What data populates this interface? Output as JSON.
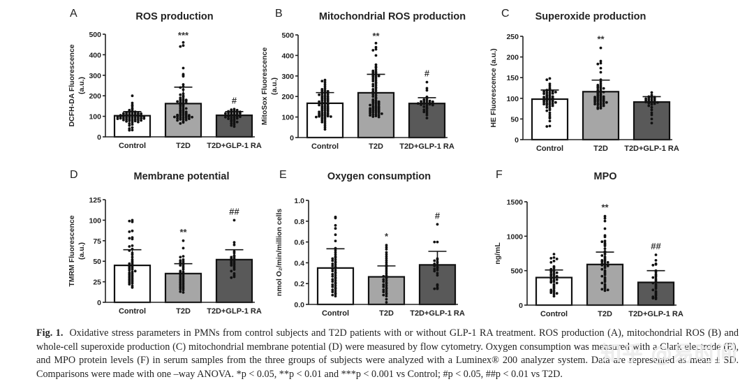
{
  "figure_caption": {
    "label": "Fig. 1.",
    "text": "Oxidative stress parameters in PMNs from control subjects and T2D patients with or without GLP-1 RA treatment. ROS production (A), mitochondrial ROS (B) and whole-cell superoxide production (C) mitochondrial membrane potential (D) were measured by flow cytometry. Oxygen consumption was measured with a Clark electrode (E), and MPO protein levels (F) in serum samples from the three groups of subjects were analyzed with a Luminex® 200 analyzer system. Data are represented as mean ± SD. Comparisons were made with one –way ANOVA. *p < 0.05, **p < 0.01 and ***p < 0.001 vs Control; #p < 0.05, ##p < 0.01 vs T2D."
  },
  "watermark": "知乎 @易时间",
  "colors": {
    "control": "#ffffff",
    "t2d": "#a6a6a6",
    "glp1": "#595959",
    "dots": "#111111",
    "axis": "#222222"
  },
  "chart_data": [
    {
      "panel": "A",
      "type": "bar",
      "title": "ROS production",
      "ylabel": "DCFH-DA Fluorescence (a.u.)",
      "ylabel_lines": [
        "DCFH-DA Fluorescence",
        "(a.u.)"
      ],
      "ylim": [
        0,
        500
      ],
      "yticks": [
        0,
        100,
        200,
        300,
        400,
        500
      ],
      "categories": [
        "Control",
        "T2D",
        "T2D+GLP-1 RA"
      ],
      "means": [
        103,
        162,
        105
      ],
      "sd": [
        20,
        80,
        18
      ],
      "significance": [
        "",
        "***",
        "#"
      ],
      "points": [
        [
          200,
          165,
          155,
          150,
          140,
          135,
          130,
          128,
          125,
          122,
          120,
          120,
          118,
          117,
          115,
          114,
          113,
          112,
          110,
          110,
          108,
          107,
          106,
          105,
          105,
          104,
          103,
          102,
          101,
          100,
          100,
          99,
          98,
          97,
          96,
          95,
          95,
          94,
          93,
          92,
          91,
          90,
          90,
          89,
          88,
          87,
          86,
          85,
          84,
          83,
          82,
          80,
          79,
          78,
          77,
          75,
          72,
          70,
          65,
          60,
          55,
          45,
          40,
          33,
          32
        ],
        [
          460,
          445,
          440,
          335,
          305,
          300,
          295,
          255,
          245,
          240,
          230,
          210,
          205,
          200,
          195,
          190,
          185,
          182,
          180,
          178,
          176,
          175,
          172,
          170,
          168,
          165,
          160,
          155,
          152,
          150,
          145,
          140,
          138,
          135,
          130,
          128,
          125,
          122,
          120,
          118,
          115,
          112,
          110,
          108,
          106,
          105,
          104,
          102,
          100,
          100,
          98,
          97,
          96,
          95,
          93,
          92,
          90,
          88,
          86,
          85,
          82,
          80,
          75,
          70,
          65
        ],
        [
          135,
          132,
          130,
          128,
          126,
          125,
          124,
          122,
          120,
          118,
          117,
          116,
          115,
          114,
          112,
          110,
          108,
          106,
          105,
          104,
          102,
          100,
          99,
          98,
          96,
          95,
          92,
          90,
          88,
          85,
          82,
          78,
          75,
          72,
          68,
          65,
          60,
          55,
          50
        ]
      ]
    },
    {
      "panel": "B",
      "type": "bar",
      "title": "Mitochondrial  ROS production",
      "ylabel": "MitoSox Fluorescence (a.u.)",
      "ylabel_lines": [
        "MitoSox Fluorescence",
        "(a.u.)"
      ],
      "ylim": [
        0,
        500
      ],
      "yticks": [
        0,
        100,
        200,
        300,
        400,
        500
      ],
      "categories": [
        "Control",
        "T2D",
        "T2D+GLP-1 RA"
      ],
      "means": [
        167,
        218,
        166
      ],
      "sd": [
        52,
        90,
        28
      ],
      "significance": [
        "",
        "**",
        "#"
      ],
      "points": [
        [
          280,
          275,
          270,
          260,
          250,
          240,
          235,
          230,
          228,
          225,
          222,
          220,
          218,
          215,
          212,
          210,
          208,
          205,
          202,
          200,
          198,
          195,
          192,
          190,
          188,
          185,
          182,
          180,
          178,
          175,
          172,
          170,
          168,
          165,
          162,
          160,
          158,
          155,
          152,
          150,
          148,
          145,
          142,
          140,
          138,
          135,
          132,
          130,
          128,
          125,
          122,
          120,
          118,
          116,
          114,
          112,
          110,
          108,
          106,
          105,
          104,
          103,
          102,
          100,
          98,
          95,
          90,
          85,
          80,
          75,
          70,
          60,
          50,
          40
        ],
        [
          460,
          440,
          430,
          425,
          400,
          355,
          345,
          340,
          330,
          325,
          320,
          318,
          315,
          310,
          305,
          302,
          300,
          298,
          295,
          290,
          285,
          280,
          275,
          270,
          265,
          260,
          255,
          250,
          245,
          240,
          235,
          230,
          225,
          220,
          215,
          210,
          205,
          200,
          195,
          190,
          185,
          180,
          178,
          175,
          172,
          170,
          168,
          165,
          162,
          160,
          158,
          155,
          152,
          150,
          148,
          146,
          144,
          142,
          140,
          138,
          136,
          134,
          132,
          130,
          128,
          126,
          124,
          122,
          120,
          118,
          116,
          114,
          112,
          110,
          108,
          105,
          102,
          100
        ],
        [
          270,
          240,
          230,
          198,
          190,
          185,
          182,
          180,
          178,
          176,
          175,
          174,
          172,
          170,
          168,
          167,
          166,
          165,
          164,
          162,
          160,
          158,
          155,
          150,
          145,
          140,
          135,
          130,
          125,
          120,
          110,
          95
        ]
      ]
    },
    {
      "panel": "C",
      "type": "bar",
      "title": "Superoxide production",
      "ylabel": "HE Fluorescence (a.u.)",
      "ylabel_lines": [
        "HE Fluorescence (a.u.)"
      ],
      "ylim": [
        0,
        250
      ],
      "yticks": [
        0,
        50,
        100,
        150,
        200,
        250
      ],
      "categories": [
        "Control",
        "T2D",
        "T2D+GLP-1 RA"
      ],
      "means": [
        98,
        116,
        91
      ],
      "sd": [
        22,
        28,
        13
      ],
      "significance": [
        "",
        "**",
        ""
      ],
      "points": [
        [
          148,
          145,
          135,
          130,
          125,
          122,
          120,
          119,
          118,
          117,
          116,
          115,
          114,
          113,
          112,
          111,
          110,
          108,
          106,
          105,
          104,
          103,
          102,
          101,
          100,
          99,
          98,
          97,
          96,
          95,
          94,
          93,
          92,
          91,
          90,
          89,
          88,
          87,
          86,
          85,
          84,
          82,
          80,
          78,
          75,
          72,
          70,
          65,
          60,
          55,
          52,
          45,
          33,
          32
        ],
        [
          222,
          190,
          185,
          183,
          173,
          163,
          145,
          140,
          135,
          132,
          130,
          128,
          126,
          125,
          124,
          122,
          120,
          118,
          116,
          115,
          114,
          112,
          110,
          108,
          106,
          105,
          104,
          103,
          102,
          101,
          100,
          99,
          98,
          97,
          96,
          95,
          94,
          93,
          92,
          91,
          90,
          89,
          88,
          87,
          86,
          85,
          84,
          82,
          80,
          78,
          76,
          75
        ],
        [
          114,
          108,
          105,
          104,
          103,
          102,
          101,
          100,
          99,
          98,
          97,
          96,
          95,
          94,
          93,
          92,
          91,
          90,
          89,
          88,
          87,
          85,
          82,
          78,
          72,
          65,
          60,
          50,
          40
        ]
      ]
    },
    {
      "panel": "D",
      "type": "bar",
      "title": "Membrane potential",
      "ylabel": "TMRM Fluorescence (a.u.)",
      "ylabel_lines": [
        "TMRM Fluorescence",
        "(a.u.)"
      ],
      "ylim": [
        0,
        125
      ],
      "yticks": [
        0,
        25,
        50,
        75,
        100,
        125
      ],
      "categories": [
        "Control",
        "T2D",
        "T2D+GLP-1 RA"
      ],
      "means": [
        45,
        35,
        52
      ],
      "sd": [
        19,
        12,
        12
      ],
      "significance": [
        "",
        "**",
        "##"
      ],
      "points": [
        [
          100,
          99,
          98,
          87,
          86,
          79,
          78,
          77,
          69,
          68,
          65,
          63,
          60,
          58,
          55,
          52,
          50,
          48,
          47,
          46,
          45,
          44,
          43,
          42,
          41,
          40,
          39,
          38,
          37,
          36,
          35,
          34,
          33,
          32,
          31,
          30,
          29,
          28,
          27,
          26,
          25,
          24,
          23,
          22,
          20,
          18
        ],
        [
          75,
          66,
          56,
          55,
          52,
          51,
          50,
          49,
          48,
          47,
          46,
          45,
          44,
          42,
          40,
          38,
          37,
          36,
          35,
          34,
          33,
          32,
          31,
          30,
          29,
          28,
          27,
          26,
          25,
          24,
          23,
          22,
          21,
          20,
          19,
          18,
          17,
          16,
          15,
          13,
          12
        ],
        [
          100,
          73,
          70,
          62,
          60,
          57,
          56,
          55,
          54,
          53,
          52,
          51,
          50,
          49,
          48,
          47,
          46,
          45,
          44,
          42,
          40,
          38,
          35,
          33,
          31,
          30
        ]
      ]
    },
    {
      "panel": "E",
      "type": "bar",
      "title": "Oxygen consumption",
      "ylabel": "nmol O2/min/million cells",
      "ylabel_lines": [
        "nmol O₂/min/million cells"
      ],
      "ylim": [
        0,
        1.0
      ],
      "yticks": [
        0.0,
        0.2,
        0.4,
        0.6,
        0.8,
        1.0
      ],
      "ytick_labels": [
        "0.0",
        "0.2",
        "0.4",
        "0.6",
        "0.8",
        "1.0"
      ],
      "categories": [
        "Control",
        "T2D",
        "T2D+GLP-1 RA"
      ],
      "means": [
        0.35,
        0.265,
        0.38
      ],
      "sd": [
        0.185,
        0.105,
        0.13
      ],
      "significance": [
        "",
        "*",
        "#"
      ],
      "points": [
        [
          0.84,
          0.83,
          0.76,
          0.73,
          0.67,
          0.61,
          0.54,
          0.52,
          0.5,
          0.48,
          0.46,
          0.45,
          0.44,
          0.43,
          0.42,
          0.41,
          0.4,
          0.39,
          0.38,
          0.37,
          0.36,
          0.35,
          0.34,
          0.33,
          0.32,
          0.31,
          0.3,
          0.29,
          0.28,
          0.27,
          0.26,
          0.25,
          0.24,
          0.23,
          0.22,
          0.21,
          0.2,
          0.19,
          0.18,
          0.17,
          0.16,
          0.15,
          0.14,
          0.13,
          0.12,
          0.11,
          0.1,
          0.09,
          0.08
        ],
        [
          0.57,
          0.55,
          0.53,
          0.5,
          0.48,
          0.46,
          0.44,
          0.42,
          0.4,
          0.38,
          0.36,
          0.34,
          0.32,
          0.3,
          0.28,
          0.27,
          0.26,
          0.25,
          0.24,
          0.23,
          0.22,
          0.21,
          0.2,
          0.19,
          0.18,
          0.17,
          0.16,
          0.15,
          0.14,
          0.13,
          0.12,
          0.11,
          0.1,
          0.09,
          0.08,
          0.05,
          0.02
        ],
        [
          0.77,
          0.6,
          0.6,
          0.44,
          0.43,
          0.42,
          0.41,
          0.4,
          0.39,
          0.38,
          0.37,
          0.36,
          0.35,
          0.34,
          0.33,
          0.32,
          0.3,
          0.28,
          0.19,
          0.18,
          0.16,
          0.15,
          0.15
        ]
      ]
    },
    {
      "panel": "F",
      "type": "bar",
      "title": "MPO",
      "ylabel": "ng/mL",
      "ylabel_lines": [
        "ng/mL"
      ],
      "ylim": [
        0,
        1500
      ],
      "yticks": [
        0,
        500,
        1000,
        1500
      ],
      "categories": [
        "Control",
        "T2D",
        "T2D+GLP-1 RA"
      ],
      "means": [
        400,
        590,
        330
      ],
      "sd": [
        110,
        180,
        170
      ],
      "significance": [
        "",
        "**",
        "##"
      ],
      "points": [
        [
          740,
          690,
          680,
          670,
          640,
          620,
          560,
          540,
          520,
          510,
          500,
          490,
          480,
          470,
          460,
          450,
          440,
          430,
          420,
          410,
          400,
          390,
          380,
          370,
          360,
          350,
          340,
          330,
          320,
          300,
          280,
          260,
          240,
          220,
          210,
          200,
          190,
          180,
          170,
          160,
          130
        ],
        [
          1290,
          1260,
          1220,
          1110,
          1010,
          990,
          930,
          920,
          900,
          880,
          860,
          820,
          780,
          760,
          740,
          720,
          700,
          680,
          660,
          650,
          640,
          630,
          620,
          610,
          600,
          590,
          580,
          570,
          560,
          540,
          520,
          500,
          480,
          460,
          440,
          420,
          400,
          380,
          360,
          340,
          320,
          300,
          280,
          260,
          240,
          230,
          220,
          210
        ],
        [
          730,
          650,
          600,
          590,
          580,
          500,
          480,
          450,
          430,
          410,
          400,
          380,
          360,
          340,
          320,
          300,
          280,
          260,
          240,
          220,
          200,
          180,
          160,
          140,
          120,
          110,
          100,
          90
        ]
      ]
    }
  ]
}
